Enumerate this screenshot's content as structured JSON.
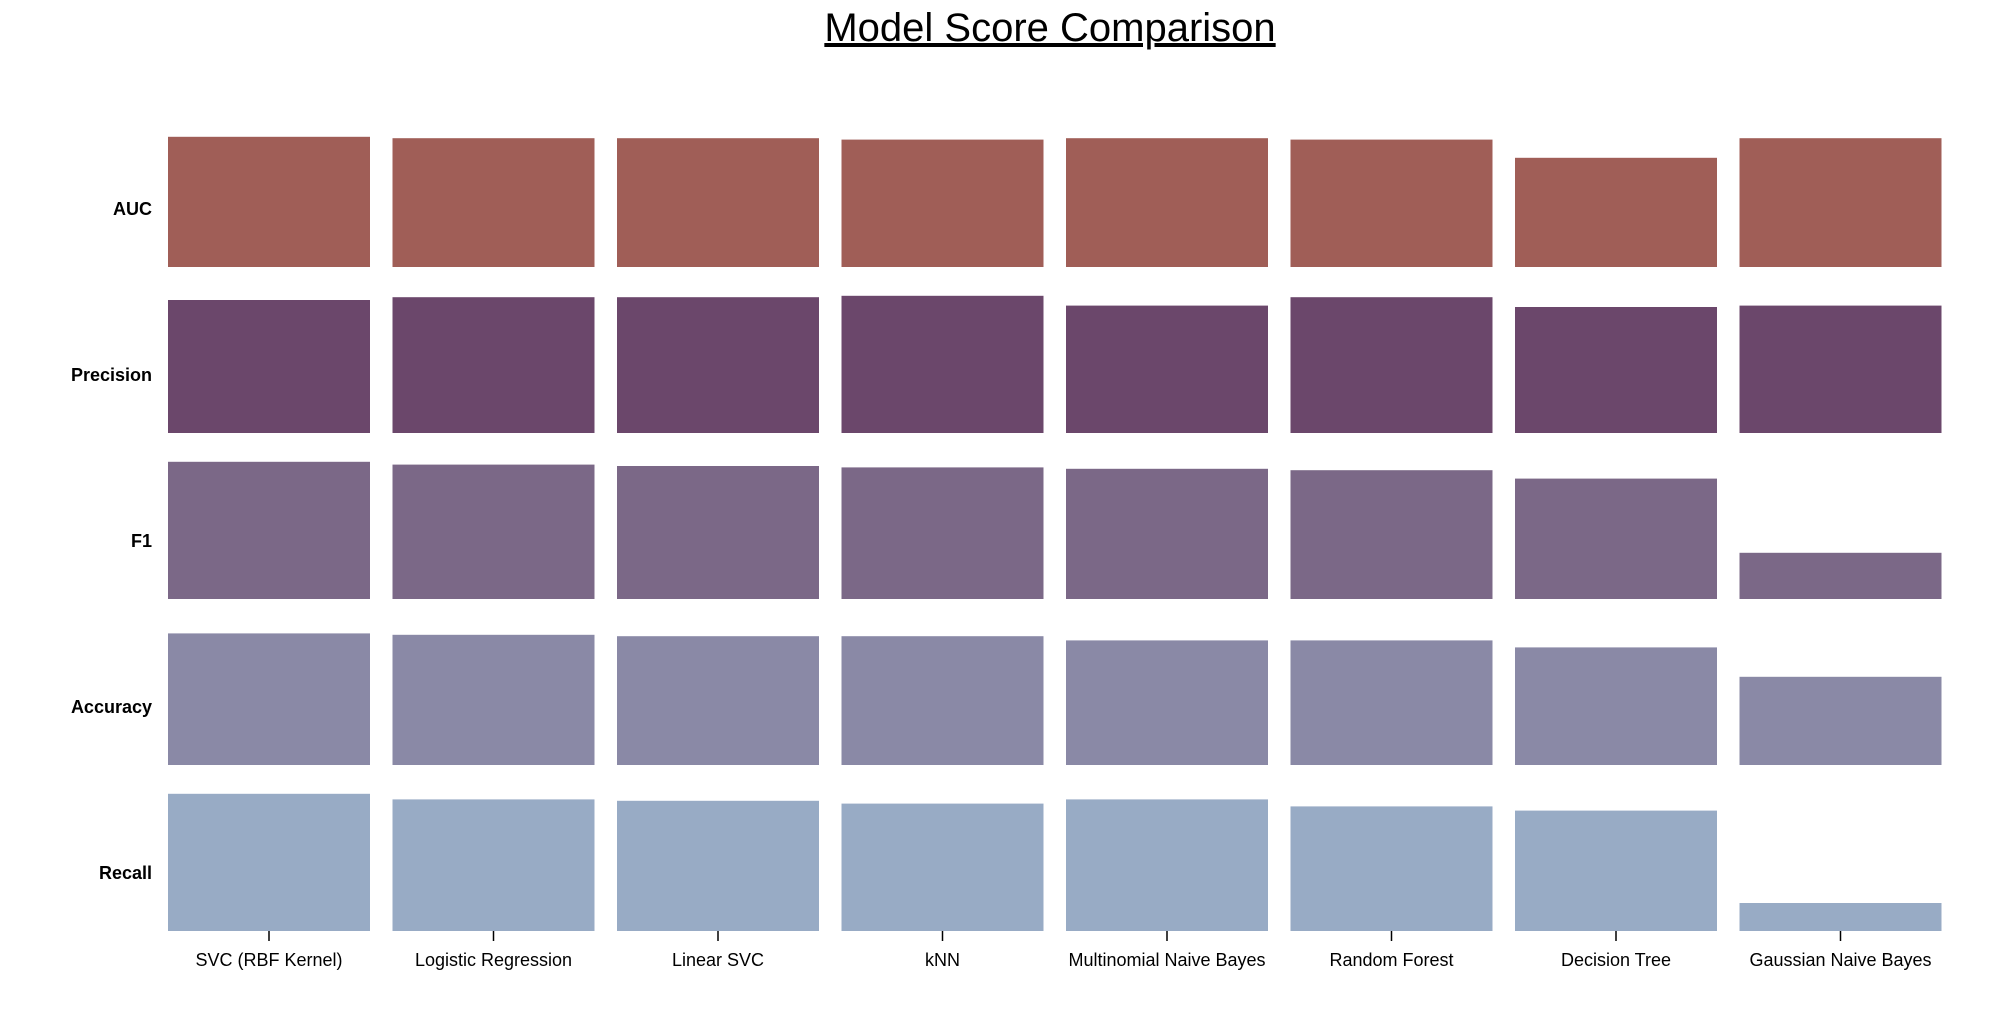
{
  "chart_data": {
    "type": "bar",
    "title": "Model Score Comparison",
    "xlabel": "",
    "ylabel": "",
    "ylim": [
      0,
      1
    ],
    "grid": false,
    "categories": [
      "SVC (RBF Kernel)",
      "Logistic Regression",
      "Linear SVC",
      "kNN",
      "Multinomial Naive Bayes",
      "Random Forest",
      "Decision Tree",
      "Gaussian Naive Bayes"
    ],
    "series": [
      {
        "name": "AUC",
        "color": "#a05e57",
        "values": [
          0.93,
          0.92,
          0.92,
          0.91,
          0.92,
          0.91,
          0.78,
          0.92
        ]
      },
      {
        "name": "Precision",
        "color": "#6b476b",
        "values": [
          0.95,
          0.97,
          0.97,
          0.98,
          0.91,
          0.97,
          0.9,
          0.91
        ]
      },
      {
        "name": "F1",
        "color": "#7b6887",
        "values": [
          0.98,
          0.96,
          0.95,
          0.94,
          0.93,
          0.92,
          0.86,
          0.33
        ]
      },
      {
        "name": "Accuracy",
        "color": "#8a89a6",
        "values": [
          0.94,
          0.93,
          0.92,
          0.92,
          0.89,
          0.89,
          0.84,
          0.63
        ]
      },
      {
        "name": "Recall",
        "color": "#98abc5",
        "values": [
          0.98,
          0.94,
          0.93,
          0.91,
          0.94,
          0.89,
          0.86,
          0.2
        ]
      }
    ]
  }
}
